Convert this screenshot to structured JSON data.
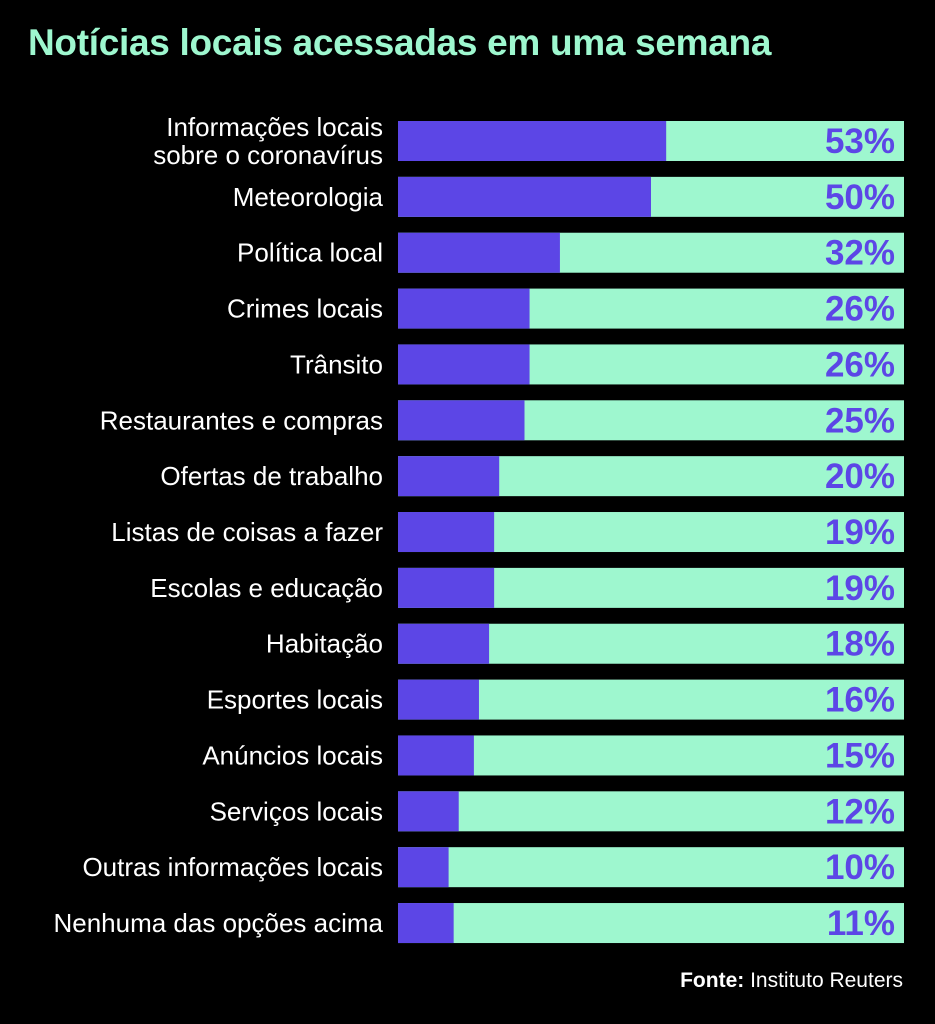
{
  "colors": {
    "background": "#000000",
    "title": "#9ef7cf",
    "bar_fill": "#5c46e6",
    "bar_track": "#9ef7cf",
    "value_label": "#5c46e6",
    "text": "#ffffff"
  },
  "chart_data": {
    "type": "bar",
    "orientation": "horizontal",
    "title": "Notícias locais acessadas em uma semana",
    "xlim": [
      0,
      100
    ],
    "value_suffix": "%",
    "categories": [
      [
        "Informações locais",
        "sobre o coronavírus"
      ],
      [
        "Meteorologia"
      ],
      [
        "Política local"
      ],
      [
        "Crimes locais"
      ],
      [
        "Trânsito"
      ],
      [
        "Restaurantes e compras"
      ],
      [
        "Ofertas de trabalho"
      ],
      [
        "Listas de coisas a fazer"
      ],
      [
        "Escolas e educação"
      ],
      [
        "Habitação"
      ],
      [
        "Esportes locais"
      ],
      [
        "Anúncios locais"
      ],
      [
        "Serviços locais"
      ],
      [
        "Outras informações locais"
      ],
      [
        "Nenhuma das opções acima"
      ]
    ],
    "values": [
      53,
      50,
      32,
      26,
      26,
      25,
      20,
      19,
      19,
      18,
      16,
      15,
      12,
      10,
      11
    ],
    "value_labels": [
      "53%",
      "50%",
      "32%",
      "26%",
      "26%",
      "25%",
      "20%",
      "19%",
      "19%",
      "18%",
      "16%",
      "15%",
      "12%",
      "10%",
      "11%"
    ]
  },
  "source": {
    "label": "Fonte:",
    "text": " Instituto Reuters"
  }
}
